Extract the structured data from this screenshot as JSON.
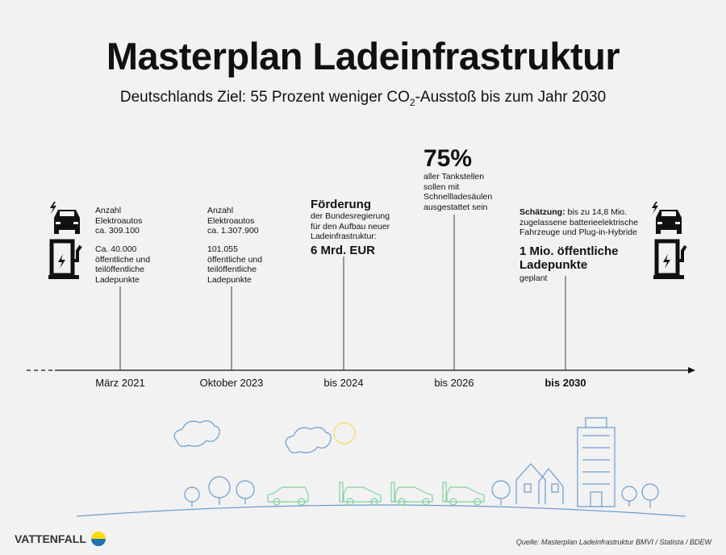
{
  "title": "Masterplan Ladeinfrastruktur",
  "subtitle": {
    "before": "Deutschlands Ziel: 55 Prozent weniger CO",
    "sub": "2",
    "after": "-Ausstoß bis zum Jahr 2030"
  },
  "milestones": [
    {
      "date": "März 2021",
      "cars": [
        "Anzahl",
        "Elektroautos",
        "ca. 309.100"
      ],
      "points": [
        "Ca. 40.000",
        "öffentliche und",
        "teilöffentliche",
        "Ladepunkte"
      ]
    },
    {
      "date": "Oktober 2023",
      "cars": [
        "Anzahl",
        "Elektroautos",
        "ca. 1.307.900"
      ],
      "points": [
        "101.055",
        "öffentliche und",
        "teilöffentliche",
        "Ladepunkte"
      ]
    },
    {
      "date": "bis 2024",
      "heading": "Förderung",
      "lines": [
        "der Bundesregierung",
        "für den Aufbau neuer",
        "Ladeinfrastruktur:"
      ],
      "value": "6 Mrd. EUR"
    },
    {
      "date": "bis 2026",
      "value": "75%",
      "lines": [
        "aller Tankstellen",
        "sollen mit",
        "Schnellladesäulen",
        "ausgestattet sein"
      ]
    },
    {
      "date": "bis 2030",
      "estimate_label": "Schätzung:",
      "estimate": " bis zu 14,8 Mio.",
      "lines": [
        "zugelassene batterieelektrische",
        "Fahrzeuge und Plug-in-Hybride"
      ],
      "value_lines": [
        "1 Mio. öffentliche",
        "Ladepunkte"
      ],
      "note": "geplant"
    }
  ],
  "logo": "VATTENFALL",
  "source": "Quelle: Masterplan Ladeinfrastruktur BMVI / Statista / BDEW",
  "colors": {
    "background": "#f2f2f2",
    "illustration_blue": "#6b9bd1",
    "cars_green": "#7fd1a0",
    "sun_yellow": "#f5dc5a",
    "logo_yellow": "#ffda00",
    "logo_blue": "#2071b5"
  }
}
